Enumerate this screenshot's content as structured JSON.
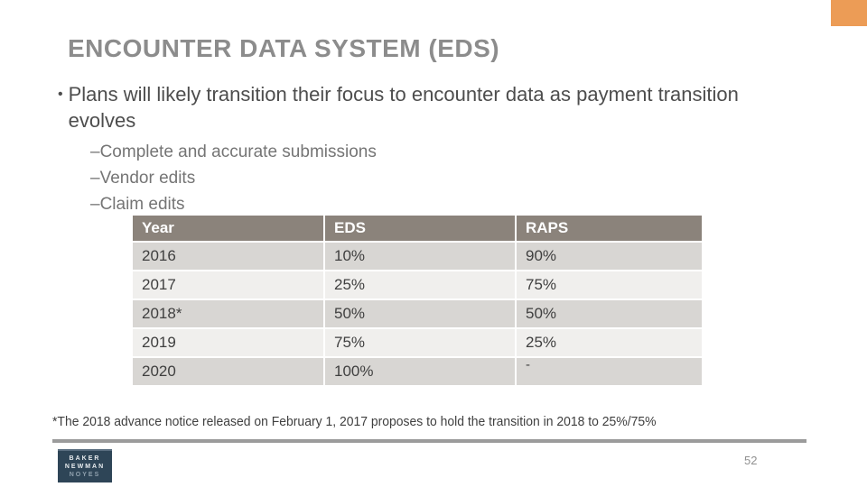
{
  "slide": {
    "title": "ENCOUNTER DATA SYSTEM (EDS)",
    "page_number": "52"
  },
  "bullets": {
    "main_marker": "•",
    "main": "Plans will likely transition their focus to encounter data as payment transition evolves",
    "sub_marker": "–",
    "sub": [
      "Complete and accurate submissions",
      "Vendor edits",
      "Claim edits"
    ]
  },
  "table": {
    "headers": [
      "Year",
      "EDS",
      "RAPS"
    ],
    "rows": [
      [
        "2016",
        "10%",
        "90%"
      ],
      [
        "2017",
        "25%",
        "75%"
      ],
      [
        "2018*",
        "50%",
        "50%"
      ],
      [
        "2019",
        "75%",
        "25%"
      ],
      [
        "2020",
        "100%",
        "-"
      ]
    ]
  },
  "footnote": "*The 2018 advance notice released on February 1, 2017 proposes to hold the transition in 2018 to 25%/75%",
  "logo": {
    "lines": [
      "BAKER",
      "NEWMAN",
      "NOYES"
    ]
  },
  "colors": {
    "accent_orange": "#EC9C56",
    "title_gray": "#8C8C8C",
    "body_text": "#4D4D4D",
    "sub_bullet_text": "#757575",
    "table_header_bg": "#8B837B",
    "table_header_text": "#FFFFFF",
    "row_dark": "#D8D6D3",
    "row_light": "#F0EFED",
    "cell_text": "#3F3F3F",
    "bottom_rule": "#9B9B9B",
    "logo_navy": "#2E4557",
    "page_number": "#909090"
  }
}
